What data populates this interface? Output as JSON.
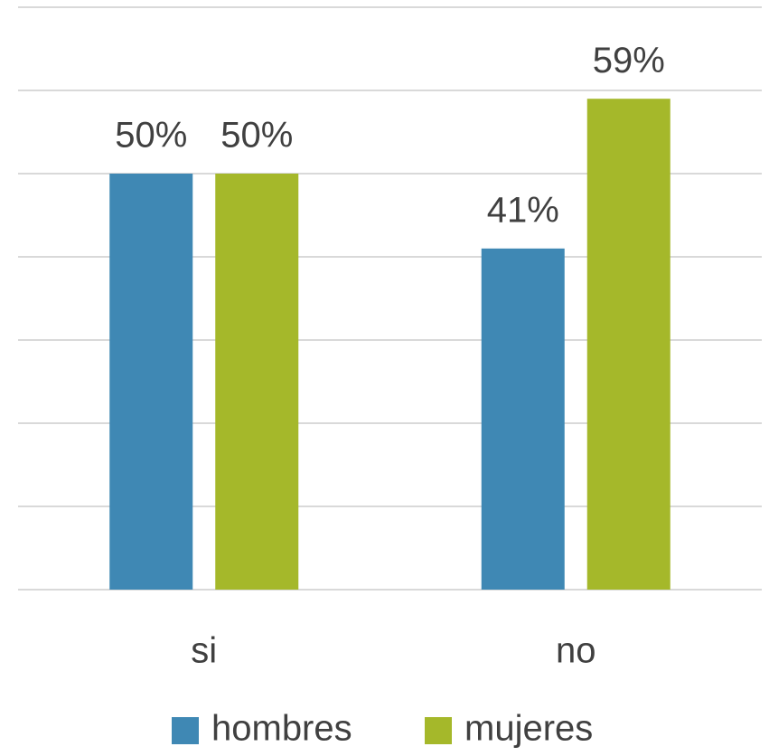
{
  "chart_data": {
    "type": "bar",
    "categories": [
      "si",
      "no"
    ],
    "series": [
      {
        "name": "hombres",
        "color": "#3f88b4",
        "values": [
          50,
          41
        ],
        "value_labels": [
          "50%",
          "41%"
        ]
      },
      {
        "name": "mujeres",
        "color": "#a5b82a",
        "values": [
          50,
          59
        ],
        "value_labels": [
          "50%",
          "59%"
        ]
      }
    ],
    "ylim": [
      0,
      70
    ],
    "yticks": [
      0,
      10,
      20,
      30,
      40,
      50,
      60,
      70
    ],
    "grid": true,
    "legend": "bottom"
  }
}
